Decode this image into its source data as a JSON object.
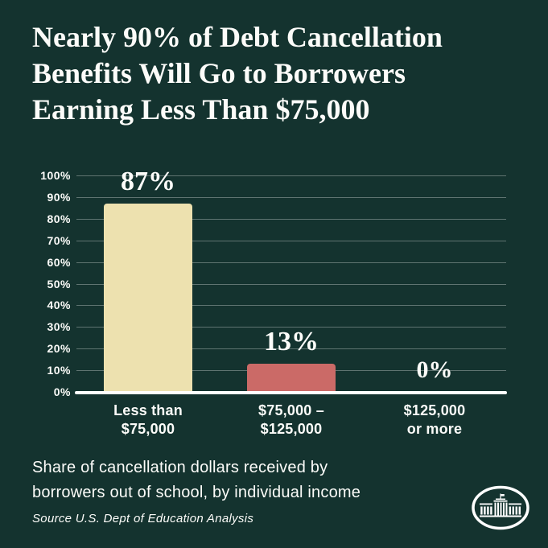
{
  "title": "Nearly 90% of Debt Cancellation\nBenefits Will Go to Borrowers\nEarning Less Than $75,000",
  "caption": "Share of cancellation dollars received by\nborrowers out of school, by individual income",
  "source": "Source U.S. Dept of Education Analysis",
  "logo_icon": "white-house-in-oval",
  "colors": {
    "background": "#14332F",
    "text": "#FCFCF9",
    "gridline": "rgba(255,255,255,0.32)",
    "baseline": "#FFFFFF",
    "bar_cream": "#EDE1AF",
    "bar_red": "#CB6A67"
  },
  "chart_data": {
    "type": "bar",
    "title": "Nearly 90% of Debt Cancellation Benefits Will Go to Borrowers Earning Less Than $75,000",
    "subtitle": "Share of cancellation dollars received by borrowers out of school, by individual income",
    "categories": [
      "Less than\n$75,000",
      "$75,000 –\n$125,000",
      "$125,000\nor more"
    ],
    "values": [
      87,
      13,
      0
    ],
    "value_labels": [
      "87%",
      "13%",
      "0%"
    ],
    "bar_colors": [
      "#EDE1AF",
      "#CB6A67",
      null
    ],
    "xlabel": "",
    "ylabel": "",
    "ylim": [
      0,
      100
    ],
    "yticks": [
      "100%",
      "90%",
      "80%",
      "70%",
      "60%",
      "50%",
      "40%",
      "30%",
      "20%",
      "10%",
      "0%"
    ],
    "ytick_values": [
      100,
      90,
      80,
      70,
      60,
      50,
      40,
      30,
      20,
      10,
      0
    ],
    "grid": "horizontal",
    "legend": "none"
  }
}
